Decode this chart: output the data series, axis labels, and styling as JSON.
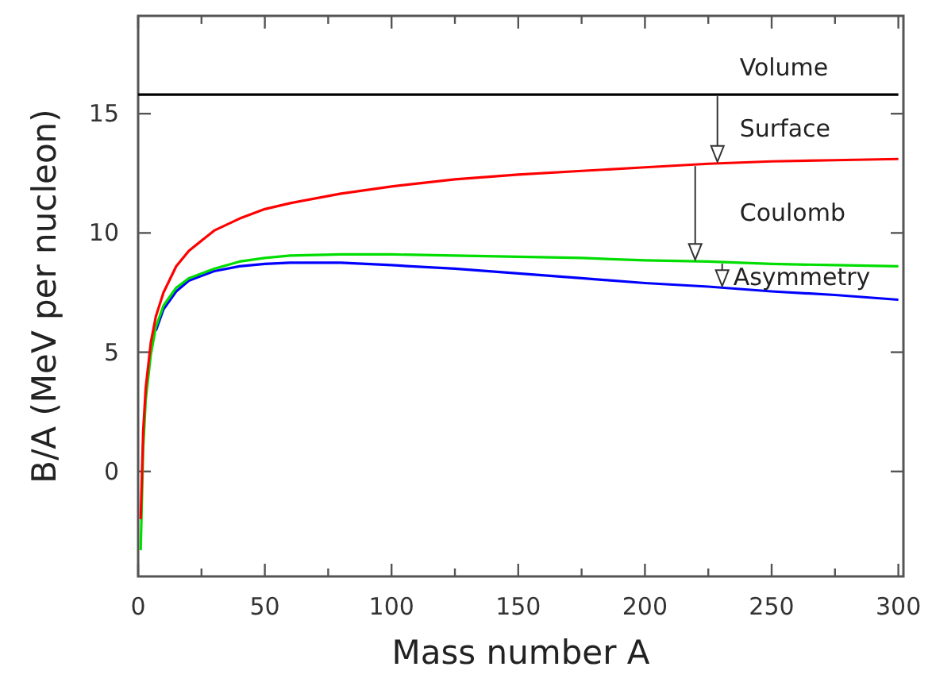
{
  "chart_data": {
    "type": "line",
    "xlabel": "Mass number A",
    "ylabel": "B/A (MeV per nucleon)",
    "x": [
      1,
      2,
      3,
      5,
      7,
      10,
      15,
      20,
      30,
      40,
      50,
      60,
      80,
      100,
      125,
      150,
      175,
      200,
      225,
      250,
      275,
      300
    ],
    "xlim": [
      0,
      302
    ],
    "ylim": [
      -4.4,
      19.1
    ],
    "xticks": [
      0,
      {
        "value": 25,
        "label": null
      },
      50,
      {
        "value": 75,
        "label": null
      },
      100,
      {
        "value": 125,
        "label": null
      },
      150,
      {
        "value": 175,
        "label": null
      },
      200,
      {
        "value": 225,
        "label": null
      },
      250,
      {
        "value": 275,
        "label": null
      },
      300
    ],
    "yticks": [
      0,
      5,
      10,
      15
    ],
    "grid": false,
    "marker": "none",
    "line_style": "solid",
    "series": [
      {
        "name": "Volume",
        "color": "#000000",
        "x": [
          0,
          300
        ],
        "values": [
          15.8,
          15.8
        ]
      },
      {
        "name": "Surface",
        "color": "#ff0000",
        "values": [
          -2.0,
          1.7,
          3.5,
          5.4,
          6.5,
          7.5,
          8.6,
          9.25,
          10.1,
          10.6,
          11.0,
          11.25,
          11.65,
          11.95,
          12.25,
          12.45,
          12.6,
          12.75,
          12.9,
          13.0,
          13.05,
          13.1
        ]
      },
      {
        "name": "Coulomb",
        "color": "#00dd00",
        "values": [
          -3.3,
          1.0,
          3.0,
          4.9,
          6.05,
          6.95,
          7.7,
          8.1,
          8.5,
          8.8,
          8.95,
          9.05,
          9.1,
          9.1,
          9.05,
          9.0,
          8.95,
          8.85,
          8.8,
          8.7,
          8.65,
          8.6
        ]
      },
      {
        "name": "Asymmetry",
        "color": "#0000ff",
        "values": [
          null,
          null,
          null,
          null,
          5.9,
          6.8,
          7.55,
          8.0,
          8.4,
          8.6,
          8.7,
          8.75,
          8.75,
          8.65,
          8.5,
          8.3,
          8.1,
          7.9,
          7.75,
          7.55,
          7.4,
          7.2
        ]
      }
    ]
  }
}
